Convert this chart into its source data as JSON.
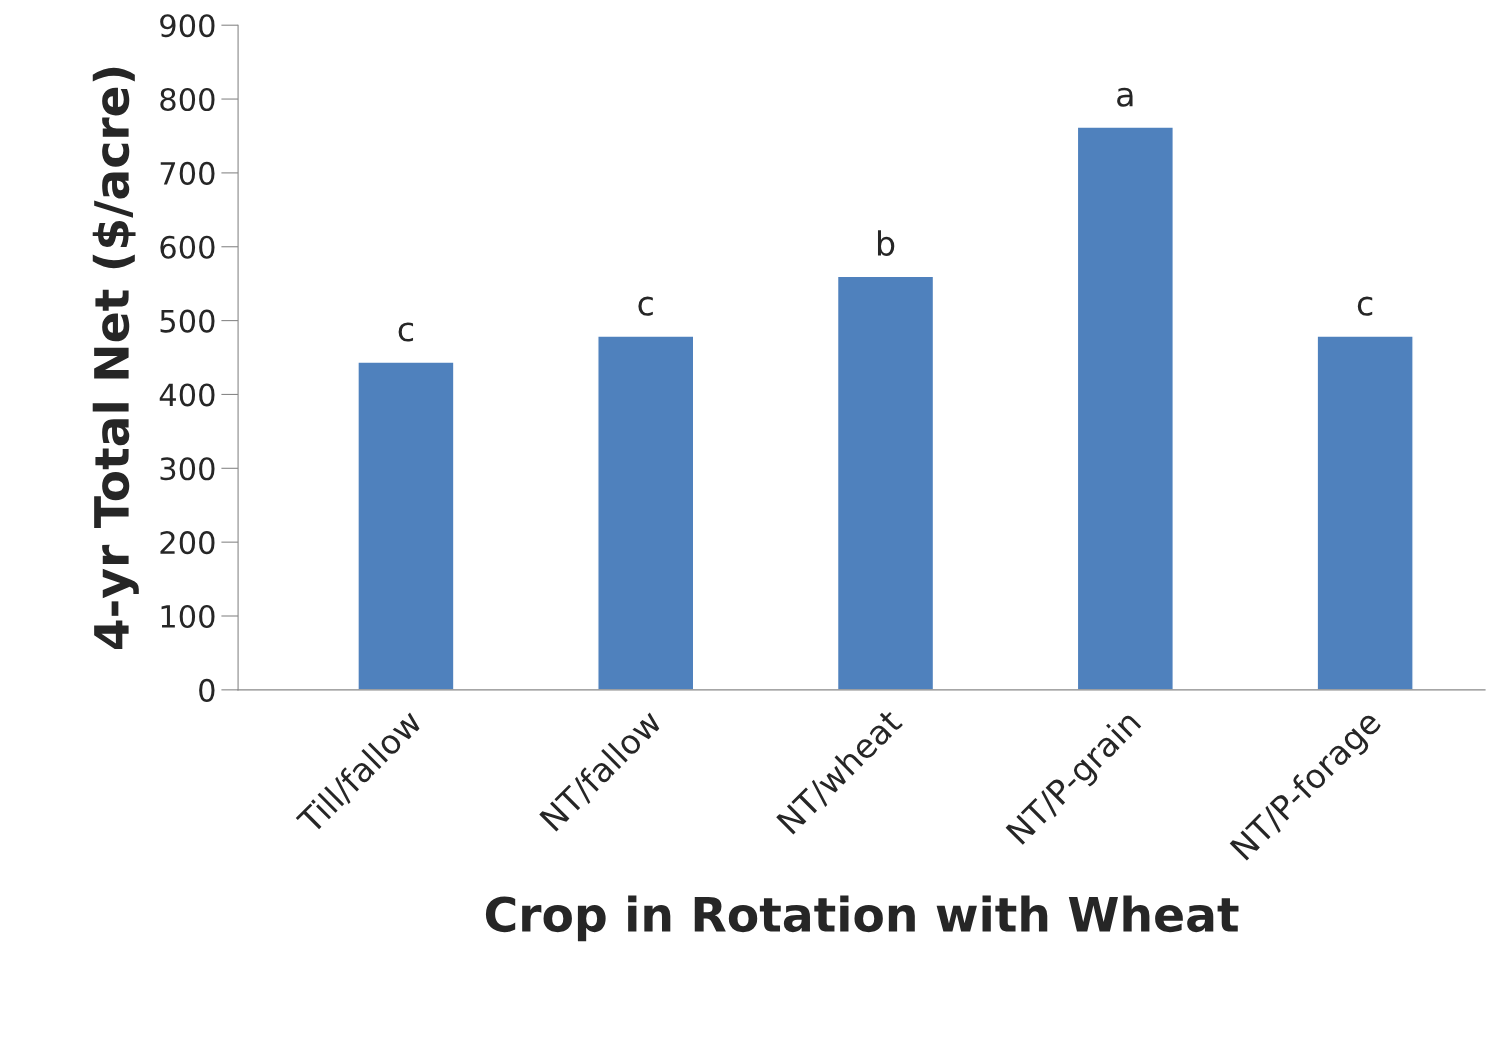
{
  "chart_data": {
    "type": "bar",
    "categories": [
      "Till/fallow",
      "NT/fallow",
      "NT/wheat",
      "NT/P-grain",
      "NT/P-forage"
    ],
    "values": [
      444,
      479,
      560,
      762,
      479
    ],
    "color": "#4f81bd",
    "xlabel": "Crop in Rotation with Wheat",
    "ylabel": "4-yr Total Net ($/acre)",
    "ylim": [
      0,
      900
    ],
    "yticks": [
      0,
      100,
      200,
      300,
      400,
      500,
      600,
      700,
      800,
      900
    ],
    "grid": false,
    "annotations": [
      {
        "text": "c",
        "x": "Till/fallow",
        "y": 444
      },
      {
        "text": "c",
        "x": "NT/fallow",
        "y": 479
      },
      {
        "text": "b",
        "x": "NT/wheat",
        "y": 560
      },
      {
        "text": "a",
        "x": "NT/P-grain",
        "y": 762
      },
      {
        "text": "c",
        "x": "NT/P-forage",
        "y": 479
      }
    ]
  }
}
